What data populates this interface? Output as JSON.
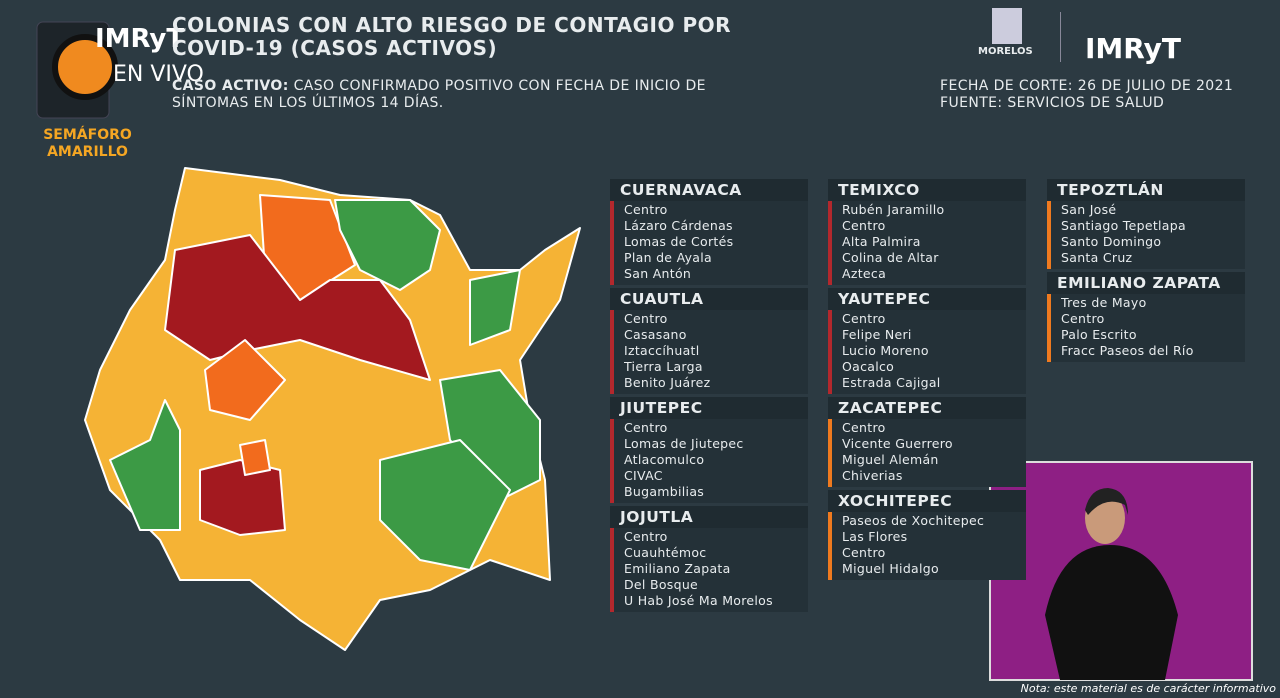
{
  "header": {
    "channel": "IMRyT",
    "live": "EN VIVO",
    "semaforo": "SEMÁFORO AMARILLO",
    "title": "COLONIAS CON ALTO RIESGO DE CONTAGIO POR COVID-19 (CASOS ACTIVOS)",
    "definition_label": "CASO ACTIVO:",
    "definition_text": "CASO CONFIRMADO POSITIVO CON FECHA DE INICIO DE SÍNTOMAS EN LOS ÚLTIMOS 14 DÍAS.",
    "state": "MORELOS",
    "cut_date": "FECHA DE CORTE: 26 DE JULIO DE 2021",
    "source": "FUENTE: SERVICIOS DE SALUD"
  },
  "columns": [
    [
      {
        "name": "CUERNAVACA",
        "color": "#b3282d",
        "colonias": [
          "Centro",
          "Lázaro Cárdenas",
          "Lomas de Cortés",
          "Plan de Ayala",
          "San Antón"
        ]
      },
      {
        "name": "CUAUTLA",
        "color": "#b3282d",
        "colonias": [
          "Centro",
          "Casasano",
          "Iztaccíhuatl",
          "Tierra Larga",
          "Benito Juárez"
        ]
      },
      {
        "name": "JIUTEPEC",
        "color": "#b3282d",
        "colonias": [
          "Centro",
          "Lomas de Jiutepec",
          "Atlacomulco",
          "CIVAC",
          "Bugambilias"
        ]
      },
      {
        "name": "JOJUTLA",
        "color": "#b3282d",
        "colonias": [
          "Centro",
          "Cuauhtémoc",
          "Emiliano Zapata",
          "Del Bosque",
          "U Hab José Ma Morelos"
        ]
      }
    ],
    [
      {
        "name": "TEMIXCO",
        "color": "#b3282d",
        "colonias": [
          "Rubén Jaramillo",
          "Centro",
          "Alta Palmira",
          "Colina de Altar",
          "Azteca"
        ]
      },
      {
        "name": "YAUTEPEC",
        "color": "#b3282d",
        "colonias": [
          "Centro",
          "Felipe Neri",
          "Lucio Moreno",
          "Oacalco",
          "Estrada Cajigal"
        ]
      },
      {
        "name": "ZACATEPEC",
        "color": "#f07a1f",
        "colonias": [
          "Centro",
          "Vicente Guerrero",
          "Miguel Alemán",
          "Chiverias"
        ]
      },
      {
        "name": "XOCHITEPEC",
        "color": "#f07a1f",
        "colonias": [
          "Paseos de Xochitepec",
          "Las Flores",
          "Centro",
          "Miguel Hidalgo"
        ]
      }
    ],
    [
      {
        "name": "TEPOZTLÁN",
        "color": "#f07a1f",
        "colonias": [
          "San José",
          "Santiago Tepetlapa",
          "Santo Domingo",
          "Santa Cruz"
        ]
      },
      {
        "name": "EMILIANO ZAPATA",
        "color": "#f07a1f",
        "colonias": [
          "Tres de Mayo",
          "Centro",
          "Palo Escrito",
          "Fracc Paseos del Río"
        ]
      }
    ]
  ],
  "footer": {
    "note": "Nota: este material es de carácter informativo"
  }
}
